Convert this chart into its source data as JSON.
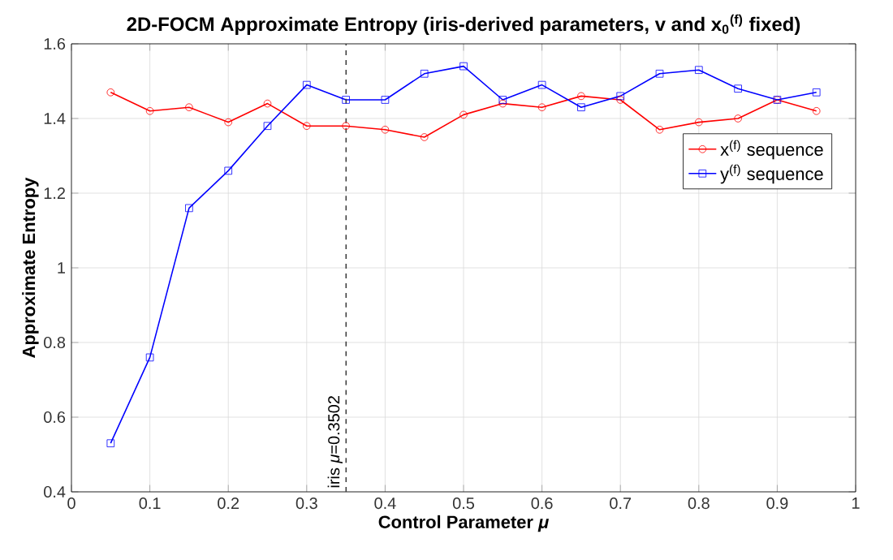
{
  "chart_data": {
    "type": "line",
    "title": "2D-FOCM Approximate Entropy (iris-derived parameters, v and x$_{0}$$^{(f)}$ fixed)",
    "xlabel": "Control  Parameter  *μ*",
    "ylabel": "Approximate Entropy",
    "x": [
      0.05,
      0.1,
      0.15,
      0.2,
      0.25,
      0.3,
      0.35,
      0.4,
      0.45,
      0.5,
      0.55,
      0.6,
      0.65,
      0.7,
      0.75,
      0.8,
      0.85,
      0.9,
      0.95
    ],
    "series": [
      {
        "name": "x$^{(f)}$  sequence",
        "color": "#ff0000",
        "marker": "circle",
        "values": [
          1.47,
          1.42,
          1.43,
          1.39,
          1.44,
          1.38,
          1.38,
          1.37,
          1.35,
          1.41,
          1.44,
          1.43,
          1.46,
          1.45,
          1.37,
          1.39,
          1.4,
          1.45,
          1.42
        ]
      },
      {
        "name": "y$^{(f)}$  sequence",
        "color": "#0000ff",
        "marker": "square",
        "values": [
          0.53,
          0.76,
          1.16,
          1.26,
          1.38,
          1.49,
          1.45,
          1.45,
          1.52,
          1.54,
          1.45,
          1.49,
          1.43,
          1.46,
          1.52,
          1.53,
          1.48,
          1.45,
          1.47
        ]
      }
    ],
    "xlim": [
      0,
      1
    ],
    "ylim": [
      0.4,
      1.6
    ],
    "xticks": [
      0,
      0.1,
      0.2,
      0.3,
      0.4,
      0.5,
      0.6,
      0.7,
      0.8,
      0.9,
      1
    ],
    "yticks": [
      0.4,
      0.6,
      0.8,
      1,
      1.2,
      1.4,
      1.6
    ],
    "ref_lines": [
      {
        "axis": "x",
        "value": 0.3502,
        "label": "iris  *μ*=0.3502",
        "color": "#404040",
        "line_style": "dashed"
      }
    ],
    "grid": true,
    "legend": "right",
    "line_style": "solid"
  }
}
